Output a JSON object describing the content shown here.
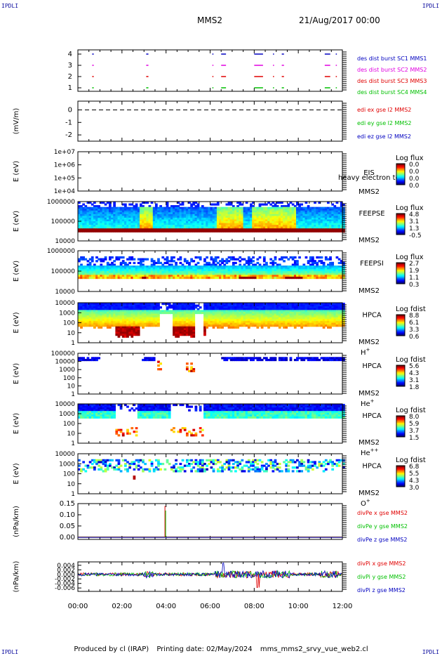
{
  "corners": {
    "tl": "IPDLI",
    "tr": "IPDLI",
    "bl": "IPDLI",
    "br": "IPDLI"
  },
  "header": {
    "title": "MMS2",
    "date": "21/Aug/2017 00:00"
  },
  "footer": {
    "produced": "Produced by cl (IRAP)",
    "printing": "Printing date: 02/May/2024",
    "file": "mms_mms2_srvy_vue_web2.cl"
  },
  "colors": {
    "red": "#e00000",
    "magenta": "#e000e0",
    "green": "#00c000",
    "blue": "#0000c0"
  },
  "chart_data": [
    {
      "type": "line",
      "panel": "burst-intervals",
      "ylim": [
        0.5,
        4.5
      ],
      "yticks": [
        "4",
        "3",
        "2",
        "1"
      ],
      "series": [
        {
          "name": "des dist burst SC1 MMS1",
          "level": 4,
          "color": "#0000c0",
          "intervals": [
            [
              0.65,
              0.72
            ],
            [
              3.1,
              3.2
            ],
            [
              6.1,
              6.15
            ],
            [
              6.5,
              6.72
            ],
            [
              8.0,
              8.4
            ],
            [
              8.85,
              8.9
            ],
            [
              9.25,
              9.35
            ],
            [
              11.2,
              11.45
            ],
            [
              11.7,
              11.75
            ]
          ]
        },
        {
          "name": "des dist burst SC2 MMS2",
          "level": 3,
          "color": "#e000e0",
          "intervals": [
            [
              0.65,
              0.72
            ],
            [
              3.1,
              3.2
            ],
            [
              6.1,
              6.15
            ],
            [
              6.5,
              6.72
            ],
            [
              8.0,
              8.4
            ],
            [
              8.85,
              8.9
            ],
            [
              9.25,
              9.35
            ],
            [
              11.2,
              11.45
            ],
            [
              11.7,
              11.75
            ]
          ]
        },
        {
          "name": "des dist burst SC3 MMS3",
          "level": 2,
          "color": "#e00000",
          "intervals": [
            [
              0.65,
              0.72
            ],
            [
              3.1,
              3.2
            ],
            [
              6.1,
              6.15
            ],
            [
              6.5,
              6.72
            ],
            [
              8.0,
              8.4
            ],
            [
              8.85,
              8.9
            ],
            [
              9.25,
              9.35
            ],
            [
              11.2,
              11.45
            ],
            [
              11.7,
              11.75
            ]
          ]
        },
        {
          "name": "des dist burst SC4 MMS4",
          "level": 1,
          "color": "#00c000",
          "intervals": [
            [
              0.65,
              0.72
            ],
            [
              3.1,
              3.2
            ],
            [
              6.1,
              6.15
            ],
            [
              6.5,
              6.72
            ],
            [
              8.0,
              8.4
            ],
            [
              8.85,
              8.9
            ],
            [
              9.25,
              9.35
            ],
            [
              11.2,
              11.45
            ],
            [
              11.7,
              11.75
            ]
          ]
        }
      ]
    },
    {
      "type": "line",
      "panel": "edi-efield",
      "ylabel": "(mV/m)",
      "ylim": [
        -2.5,
        0.7
      ],
      "yticks": [
        "0",
        "-1",
        "-2"
      ],
      "series": [
        {
          "name": "edi ex gse l2 MMS2",
          "color": "#e00000"
        },
        {
          "name": "edi ey gse l2 MMS2",
          "color": "#00c000"
        },
        {
          "name": "edi ez gse l2 MMS2",
          "color": "#0000c0"
        }
      ],
      "dashed_level": 0
    },
    {
      "type": "heatmap",
      "panel": "eis",
      "ylabel": "E (eV)",
      "scale": "log",
      "ylim": [
        10000,
        10000000
      ],
      "yticks": [
        "1e+07",
        "1e+06",
        "1e+05",
        "1e+04"
      ],
      "instrument": "EIS",
      "species": "heavy electron to",
      "sc": "MMS2",
      "colorbar": {
        "title": "Log flux",
        "ticks": [
          "0.0",
          "0.0",
          "0.0",
          "0.0"
        ]
      },
      "empty": true
    },
    {
      "type": "heatmap",
      "panel": "feepse",
      "ylabel": "E (eV)",
      "scale": "log",
      "ylim": [
        10000,
        1000000
      ],
      "yticks": [
        "1000000",
        "100000",
        "10000"
      ],
      "instrument": "FEEPSE",
      "sc": "MMS2",
      "colorbar": {
        "title": "Log flux",
        "ticks": [
          "4.8",
          "3.1",
          "1.3",
          "-0.5"
        ]
      },
      "band": {
        "top_frac": 0.1,
        "bottom_frac": 0.72
      }
    },
    {
      "type": "heatmap",
      "panel": "feepsi",
      "ylabel": "E (eV)",
      "scale": "log",
      "ylim": [
        10000,
        1000000
      ],
      "yticks": [
        "1000000",
        "100000",
        "10000"
      ],
      "instrument": "FEEPSI",
      "sc": "MMS2",
      "colorbar": {
        "title": "Log flux",
        "ticks": [
          "2.7",
          "1.9",
          "1.1",
          "0.3"
        ]
      },
      "band": {
        "top_frac": 0.12,
        "bottom_frac": 0.62
      }
    },
    {
      "type": "heatmap",
      "panel": "hpca-h",
      "ylabel": "E (eV)",
      "scale": "log",
      "ylim": [
        1,
        10000
      ],
      "yticks": [
        "10000",
        "1000",
        "100",
        "10",
        "1"
      ],
      "instrument": "HPCA",
      "sc": "MMS2",
      "species": "H",
      "sup": "+",
      "colorbar": {
        "title": "Log fdist",
        "ticks": [
          "8.8",
          "6.1",
          "3.3",
          "0.6"
        ]
      }
    },
    {
      "type": "heatmap",
      "panel": "hpca-he",
      "ylabel": "E (eV)",
      "scale": "log",
      "ylim": [
        1,
        100000
      ],
      "yticks": [
        "100000",
        "10000",
        "1000",
        "100",
        "10",
        "1"
      ],
      "instrument": "HPCA",
      "sc": "MMS2",
      "species": "He",
      "sup": "+",
      "colorbar": {
        "title": "Log fdist",
        "ticks": [
          "5.6",
          "4.3",
          "3.1",
          "1.8"
        ]
      }
    },
    {
      "type": "heatmap",
      "panel": "hpca-hepp",
      "ylabel": "E (eV)",
      "scale": "log",
      "ylim": [
        1,
        10000
      ],
      "yticks": [
        "10000",
        "1000",
        "100",
        "10",
        "1"
      ],
      "instrument": "HPCA",
      "sc": "MMS2",
      "species": "He",
      "sup": "++",
      "colorbar": {
        "title": "Log fdist",
        "ticks": [
          "8.0",
          "5.9",
          "3.7",
          "1.5"
        ]
      }
    },
    {
      "type": "heatmap",
      "panel": "hpca-o",
      "ylabel": "E (eV)",
      "scale": "log",
      "ylim": [
        1,
        10000
      ],
      "yticks": [
        "10000",
        "1000",
        "100",
        "10",
        "1"
      ],
      "instrument": "HPCA",
      "sc": "MMS2",
      "species": "O",
      "sup": "+",
      "colorbar": {
        "title": "Log fdist",
        "ticks": [
          "6.8",
          "5.5",
          "4.3",
          "3.0"
        ]
      }
    },
    {
      "type": "line",
      "panel": "divpe",
      "ylabel": "(nPa/km)",
      "ylim": [
        -0.01,
        0.15
      ],
      "yticks": [
        "0.15",
        "0.10",
        "0.05",
        "0.00"
      ],
      "series": [
        {
          "name": "divPe x gse MMS2",
          "color": "#e00000"
        },
        {
          "name": "divPe y gse MMS2",
          "color": "#00c000"
        },
        {
          "name": "divPe z gse MMS2",
          "color": "#0000c0"
        }
      ],
      "spike": {
        "t": 3.95,
        "value": 0.14
      }
    },
    {
      "type": "line",
      "panel": "divpi",
      "ylabel": "(nPa/km)",
      "ylim": [
        -0.0075,
        0.0055
      ],
      "yticks": [
        "0.004",
        "0.002",
        "0.000",
        "-0.002",
        "-0.004",
        "-0.006"
      ],
      "series": [
        {
          "name": "divPi x gse MMS2",
          "color": "#e00000"
        },
        {
          "name": "divPi y gse MMS2",
          "color": "#00c000"
        },
        {
          "name": "divPi z gse MMS2",
          "color": "#0000c0"
        }
      ]
    }
  ],
  "xaxis": {
    "ticks": [
      "00:00",
      "02:00",
      "04:00",
      "06:00",
      "08:00",
      "10:00",
      "12:00"
    ],
    "xlim": [
      0,
      12
    ]
  }
}
